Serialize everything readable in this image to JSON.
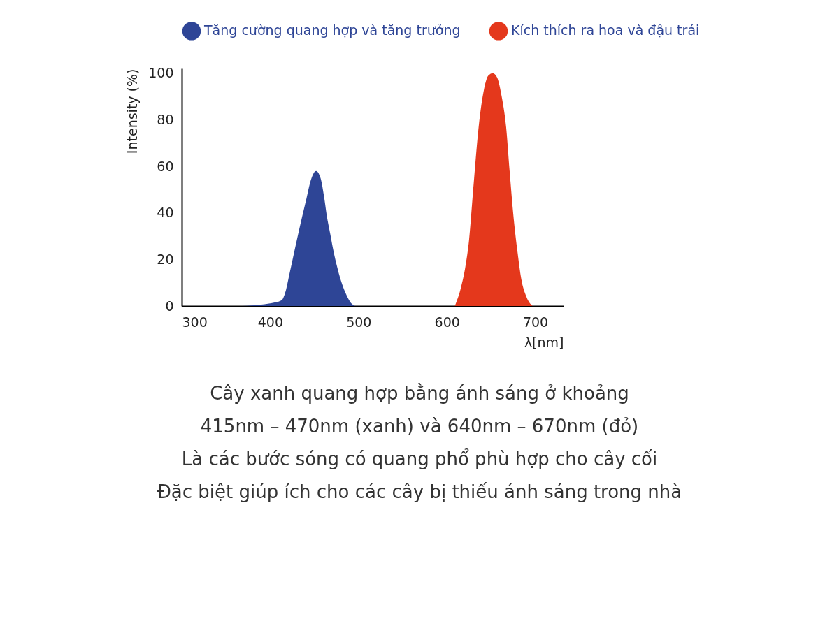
{
  "chart_data": {
    "type": "area",
    "xlabel": "λ[nm]",
    "ylabel": "Intensity (%)",
    "xlim": [
      300,
      732
    ],
    "ylim": [
      0,
      102
    ],
    "xticks": [
      300,
      400,
      500,
      600,
      700
    ],
    "yticks": [
      0,
      20,
      40,
      60,
      80,
      100
    ],
    "legend": "top",
    "series": [
      {
        "name": "Tăng cường quang hợp và tăng trưởng",
        "color": "#2e4596",
        "x": [
          368,
          390,
          405,
          413,
          418,
          422,
          426,
          430,
          436,
          441,
          446,
          452,
          457,
          461,
          464,
          468,
          472,
          475,
          480,
          486,
          491,
          496
        ],
        "values": [
          0,
          0.6,
          1.5,
          2.5,
          7,
          14,
          21,
          28,
          38,
          46,
          54,
          58,
          55,
          47,
          39,
          31,
          23,
          18,
          11,
          5,
          1.5,
          0
        ]
      },
      {
        "name": "Kích thích ra hoa và đậu trái",
        "color": "#e4381c",
        "x": [
          609,
          616,
          621,
          625,
          630,
          636,
          642,
          647,
          652,
          657,
          662,
          667,
          671,
          675,
          680,
          684,
          690,
          697
        ],
        "values": [
          0,
          8,
          17,
          28,
          51,
          77,
          93,
          99,
          100,
          98,
          90,
          77,
          58,
          40,
          23,
          12,
          4,
          0
        ]
      }
    ],
    "annotations": [
      "Cây xanh quang hợp bằng ánh sáng ở khoảng",
      "415nm – 470nm (xanh) và 640nm – 670nm (đỏ)",
      "Là các bước sóng có quang phổ phù hợp cho cây cối",
      "Đặc biệt giúp ích cho các cây bị thiếu ánh sáng trong nhà"
    ]
  }
}
